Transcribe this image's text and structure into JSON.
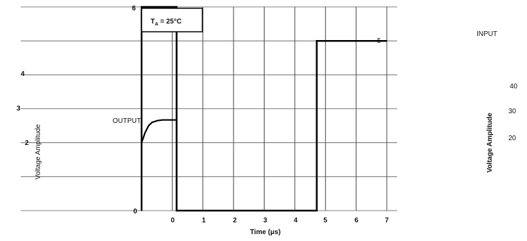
{
  "chart_data": {
    "type": "line",
    "annotation": "TA = 25°C",
    "annotation_main": "T",
    "annotation_sub": "A",
    "annotation_rest": " = 25°C",
    "xlabel": "Time (μs)",
    "ylabel": "Voltage Amplitude",
    "ylabel_right": "Voltage Amplitude",
    "x_ticks": [
      "0",
      "1",
      "2",
      "3",
      "4",
      "5",
      "6",
      "7"
    ],
    "y_ticks_left": [
      "0",
      "2",
      "3",
      "4",
      "6"
    ],
    "y_ticks_right": [
      "5",
      "40",
      "30",
      "20"
    ],
    "xlim": [
      0,
      7
    ],
    "ylim": [
      0,
      6
    ],
    "grid": true,
    "series": [
      {
        "name": "INPUT",
        "color": "#000000",
        "x": [
          0,
          0,
          1,
          1,
          5,
          5,
          7
        ],
        "y": [
          0,
          6,
          6,
          0,
          0,
          5,
          5
        ]
      },
      {
        "name": "OUTPUT",
        "color": "#000000",
        "x": [
          0,
          0.1,
          0.2,
          0.3,
          0.45,
          0.6,
          0.8,
          1.0
        ],
        "y": [
          2.0,
          2.3,
          2.5,
          2.6,
          2.65,
          2.67,
          2.67,
          2.67
        ]
      }
    ]
  }
}
